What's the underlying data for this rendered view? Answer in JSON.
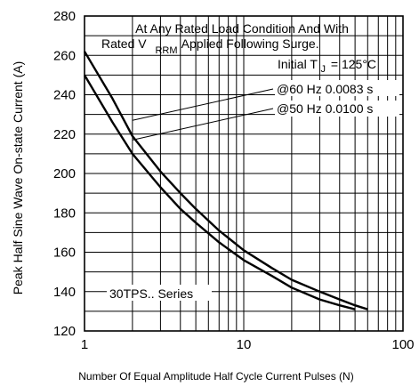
{
  "chart_data": {
    "type": "line",
    "title": "",
    "xlabel": "Number Of Equal Amplitude Half Cycle Current Pulses (N)",
    "ylabel": "Peak Half Sine Wave On-state Current (A)",
    "xscale": "log",
    "xlim": [
      1,
      100
    ],
    "ylim": [
      120,
      280
    ],
    "x_tick_labels": [
      "1",
      "10",
      "100"
    ],
    "y_tick_labels": [
      "120",
      "140",
      "160",
      "180",
      "200",
      "220",
      "240",
      "260",
      "280"
    ],
    "grid": true,
    "annotations": {
      "condition_line1": "At Any Rated Load Condition And With",
      "condition_line2_a": "Rated V",
      "condition_line2_sub": "RRM",
      "condition_line2_b": "Applied Following Surge.",
      "initial_temp_a": "Initial T",
      "initial_temp_sub": "J",
      "initial_temp_b": "= 125°C",
      "label_60hz": "@60 Hz 0.0083 s",
      "label_50hz": "@50 Hz 0.0100 s",
      "series_note": "30TPS.. Series"
    },
    "series": [
      {
        "name": "@60 Hz 0.0083 s",
        "x": [
          1,
          1.5,
          2,
          3,
          4,
          5,
          7,
          10,
          15,
          20,
          30,
          40,
          50,
          60
        ],
        "y": [
          262,
          238,
          219,
          201,
          190,
          182,
          171,
          161,
          152,
          146,
          140,
          136,
          133,
          131
        ]
      },
      {
        "name": "@50 Hz 0.0100 s",
        "x": [
          1,
          1.5,
          2,
          3,
          4,
          5,
          7,
          10,
          15,
          20,
          30,
          40,
          50
        ],
        "y": [
          250,
          226,
          210,
          193,
          182,
          175,
          165,
          156,
          148,
          142,
          136,
          133,
          131
        ]
      }
    ]
  }
}
